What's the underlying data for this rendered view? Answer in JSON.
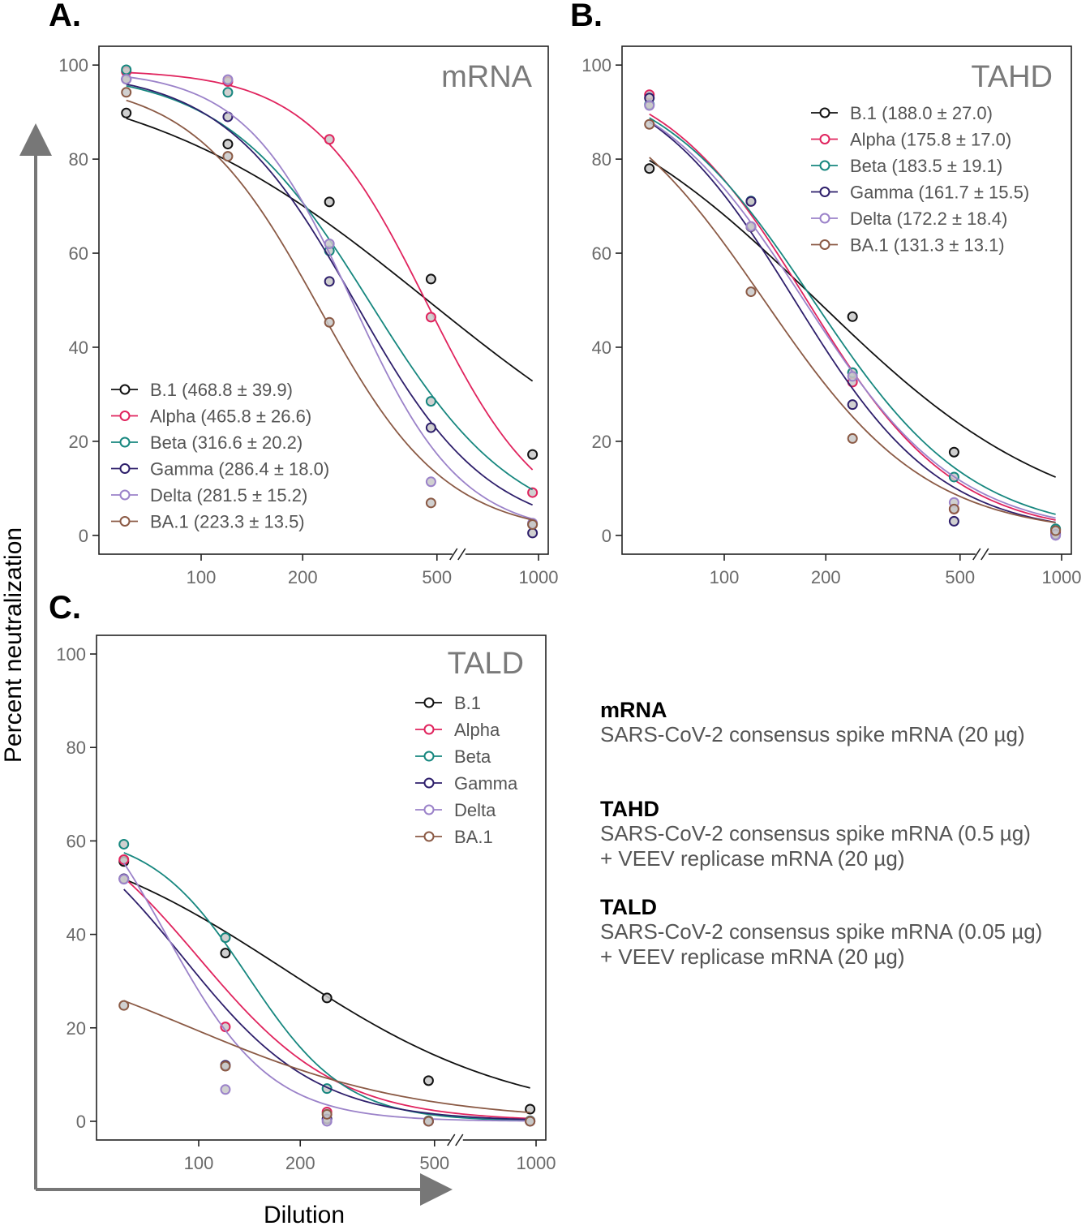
{
  "y_axis_title": "Percent neutralization",
  "x_axis_title": "Dilution",
  "colors": {
    "B.1": "#111111",
    "Alpha": "#e0245e",
    "Beta": "#17877f",
    "Gamma": "#2e1f6b",
    "Delta": "#9b82c9",
    "BA.1": "#8b5a45"
  },
  "chart_data": [
    {
      "panel_label": "A.",
      "title": "mRNA",
      "type": "line",
      "x_scale": "log",
      "xlim": [
        55,
        1000
      ],
      "ylim": [
        -4,
        104
      ],
      "x_ticks": [
        100,
        200,
        500,
        1000
      ],
      "x_tick_labels": [
        "100",
        "200",
        "500",
        "1000"
      ],
      "y_ticks": [
        0,
        20,
        40,
        60,
        80,
        100
      ],
      "y_tick_labels": [
        "0",
        "20",
        "40",
        "60",
        "80",
        "100"
      ],
      "axis_break_after": 500,
      "legend_position": "bottom-left",
      "series": [
        {
          "name": "B.1",
          "legend": "B.1 (468.8 ± 39.9)",
          "x": [
            60,
            120,
            240,
            480,
            960
          ],
          "y": [
            89.8,
            83.2,
            70.9,
            54.5,
            17.2
          ],
          "fit_ic50": 468.8,
          "fit_top": 100,
          "fit_hill": 1.0
        },
        {
          "name": "Alpha",
          "legend": "Alpha (465.8 ± 26.6)",
          "x": [
            60,
            120,
            240,
            480,
            960
          ],
          "y": [
            98.6,
            96.5,
            84.2,
            46.4,
            9.1
          ],
          "fit_ic50": 465.8,
          "fit_top": 99,
          "fit_hill": 2.5
        },
        {
          "name": "Beta",
          "legend": "Beta (316.6 ± 20.2)",
          "x": [
            60,
            120,
            240,
            480,
            960
          ],
          "y": [
            99.0,
            94.2,
            60.5,
            28.5,
            2.4
          ],
          "fit_ic50": 316.6,
          "fit_top": 99,
          "fit_hill": 2.0
        },
        {
          "name": "Gamma",
          "legend": "Gamma (286.4 ± 18.0)",
          "x": [
            60,
            120,
            240,
            480,
            960
          ],
          "y": [
            97.0,
            89.0,
            54.0,
            22.9,
            0.5
          ],
          "fit_ic50": 286.4,
          "fit_top": 99,
          "fit_hill": 2.2
        },
        {
          "name": "Delta",
          "legend": "Delta (281.5 ± 15.2)",
          "x": [
            60,
            120,
            240,
            480,
            960
          ],
          "y": [
            97.0,
            96.9,
            62.0,
            11.4,
            2.6
          ],
          "fit_ic50": 281.5,
          "fit_top": 99,
          "fit_hill": 2.7
        },
        {
          "name": "BA.1",
          "legend": "BA.1 (223.3 ± 13.5)",
          "x": [
            60,
            120,
            240,
            480,
            960
          ],
          "y": [
            94.2,
            80.6,
            45.3,
            6.9,
            2.3
          ],
          "fit_ic50": 223.3,
          "fit_top": 97,
          "fit_hill": 2.3
        }
      ]
    },
    {
      "panel_label": "B.",
      "title": "TAHD",
      "type": "line",
      "x_scale": "log",
      "xlim": [
        55,
        1000
      ],
      "ylim": [
        -4,
        104
      ],
      "x_ticks": [
        100,
        200,
        500,
        1000
      ],
      "x_tick_labels": [
        "100",
        "200",
        "500",
        "1000"
      ],
      "y_ticks": [
        0,
        20,
        40,
        60,
        80,
        100
      ],
      "y_tick_labels": [
        "0",
        "20",
        "40",
        "60",
        "80",
        "100"
      ],
      "axis_break_after": 500,
      "legend_position": "top-right",
      "series": [
        {
          "name": "B.1",
          "legend": "B.1 (188.0 ± 27.0)",
          "x": [
            60,
            120,
            240,
            480,
            960
          ],
          "y": [
            78.0,
            65.6,
            46.5,
            17.7,
            1.2
          ],
          "fit_ic50": 188.0,
          "fit_top": 100,
          "fit_hill": 1.2
        },
        {
          "name": "Alpha",
          "legend": "Alpha (175.8 ± 17.0)",
          "x": [
            60,
            120,
            240,
            480,
            960
          ],
          "y": [
            93.7,
            71.0,
            32.6,
            5.6,
            0.7
          ],
          "fit_ic50": 175.8,
          "fit_top": 100,
          "fit_hill": 2.0
        },
        {
          "name": "Beta",
          "legend": "Beta (183.5 ± 19.1)",
          "x": [
            60,
            120,
            240,
            480,
            960
          ],
          "y": [
            91.6,
            71.1,
            34.6,
            12.4,
            1.4
          ],
          "fit_ic50": 183.5,
          "fit_top": 100,
          "fit_hill": 1.85
        },
        {
          "name": "Gamma",
          "legend": "Gamma (161.7 ± 15.5)",
          "x": [
            60,
            120,
            240,
            480,
            960
          ],
          "y": [
            93.0,
            71.0,
            27.8,
            3.0,
            0.2
          ],
          "fit_ic50": 161.7,
          "fit_top": 100,
          "fit_hill": 2.0
        },
        {
          "name": "Delta",
          "legend": "Delta (172.2 ± 18.4)",
          "x": [
            60,
            120,
            240,
            480,
            960
          ],
          "y": [
            91.4,
            65.7,
            33.8,
            7.0,
            0.0
          ],
          "fit_ic50": 172.2,
          "fit_top": 100,
          "fit_hill": 1.9
        },
        {
          "name": "BA.1",
          "legend": "BA.1 (131.3 ± 13.1)",
          "x": [
            60,
            120,
            240,
            480,
            960
          ],
          "y": [
            87.4,
            51.8,
            20.6,
            5.6,
            1.0
          ],
          "fit_ic50": 131.3,
          "fit_top": 100,
          "fit_hill": 1.8
        }
      ]
    },
    {
      "panel_label": "C.",
      "title": "TALD",
      "type": "line",
      "x_scale": "log",
      "xlim": [
        55,
        1000
      ],
      "ylim": [
        -4,
        104
      ],
      "x_ticks": [
        100,
        200,
        500,
        1000
      ],
      "x_tick_labels": [
        "100",
        "200",
        "500",
        "1000"
      ],
      "y_ticks": [
        0,
        20,
        40,
        60,
        80,
        100
      ],
      "y_tick_labels": [
        "0",
        "20",
        "40",
        "60",
        "80",
        "100"
      ],
      "axis_break_after": 500,
      "legend_position": "top-right",
      "series": [
        {
          "name": "B.1",
          "legend": "B.1",
          "x": [
            60,
            120,
            240,
            480,
            960
          ],
          "y": [
            55.6,
            36.0,
            26.4,
            8.7,
            2.6
          ],
          "fit_ic50": 180,
          "fit_top": 65,
          "fit_hill": 1.25
        },
        {
          "name": "Alpha",
          "legend": "Alpha",
          "x": [
            60,
            120,
            240,
            480,
            960
          ],
          "y": [
            56.0,
            20.2,
            2.0,
            0.1,
            0.1
          ],
          "fit_ic50": 100,
          "fit_top": 70,
          "fit_hill": 2.1
        },
        {
          "name": "Beta",
          "legend": "Beta",
          "x": [
            60,
            120,
            240,
            480,
            960
          ],
          "y": [
            59.3,
            39.3,
            7.0,
            0.1,
            0.1
          ],
          "fit_ic50": 140,
          "fit_top": 62,
          "fit_hill": 3.0
        },
        {
          "name": "Gamma",
          "legend": "Gamma",
          "x": [
            60,
            120,
            240,
            480,
            960
          ],
          "y": [
            51.9,
            12.0,
            0.5,
            0.0,
            0.0
          ],
          "fit_ic50": 90,
          "fit_top": 70,
          "fit_hill": 2.2
        },
        {
          "name": "Delta",
          "legend": "Delta",
          "x": [
            60,
            120,
            240,
            480,
            960
          ],
          "y": [
            51.8,
            6.8,
            0.0,
            0.0,
            0.0
          ],
          "fit_ic50": 80,
          "fit_top": 80,
          "fit_hill": 2.8
        },
        {
          "name": "BA.1",
          "legend": "BA.1",
          "x": [
            60,
            120,
            240,
            480,
            960
          ],
          "y": [
            24.8,
            11.8,
            1.5,
            0.0,
            0.0
          ],
          "fit_ic50": 95,
          "fit_top": 40,
          "fit_hill": 1.3
        }
      ]
    }
  ],
  "descriptions": [
    {
      "name": "mRNA",
      "lines": [
        "SARS-CoV-2 consensus spike mRNA (20 µg)"
      ]
    },
    {
      "name": "TAHD",
      "lines": [
        "SARS-CoV-2 consensus spike mRNA (0.5 µg)",
        "+ VEEV replicase mRNA (20 µg)"
      ]
    },
    {
      "name": "TALD",
      "lines": [
        "SARS-CoV-2 consensus spike mRNA (0.05 µg)",
        "+ VEEV replicase mRNA (20 µg)"
      ]
    }
  ]
}
